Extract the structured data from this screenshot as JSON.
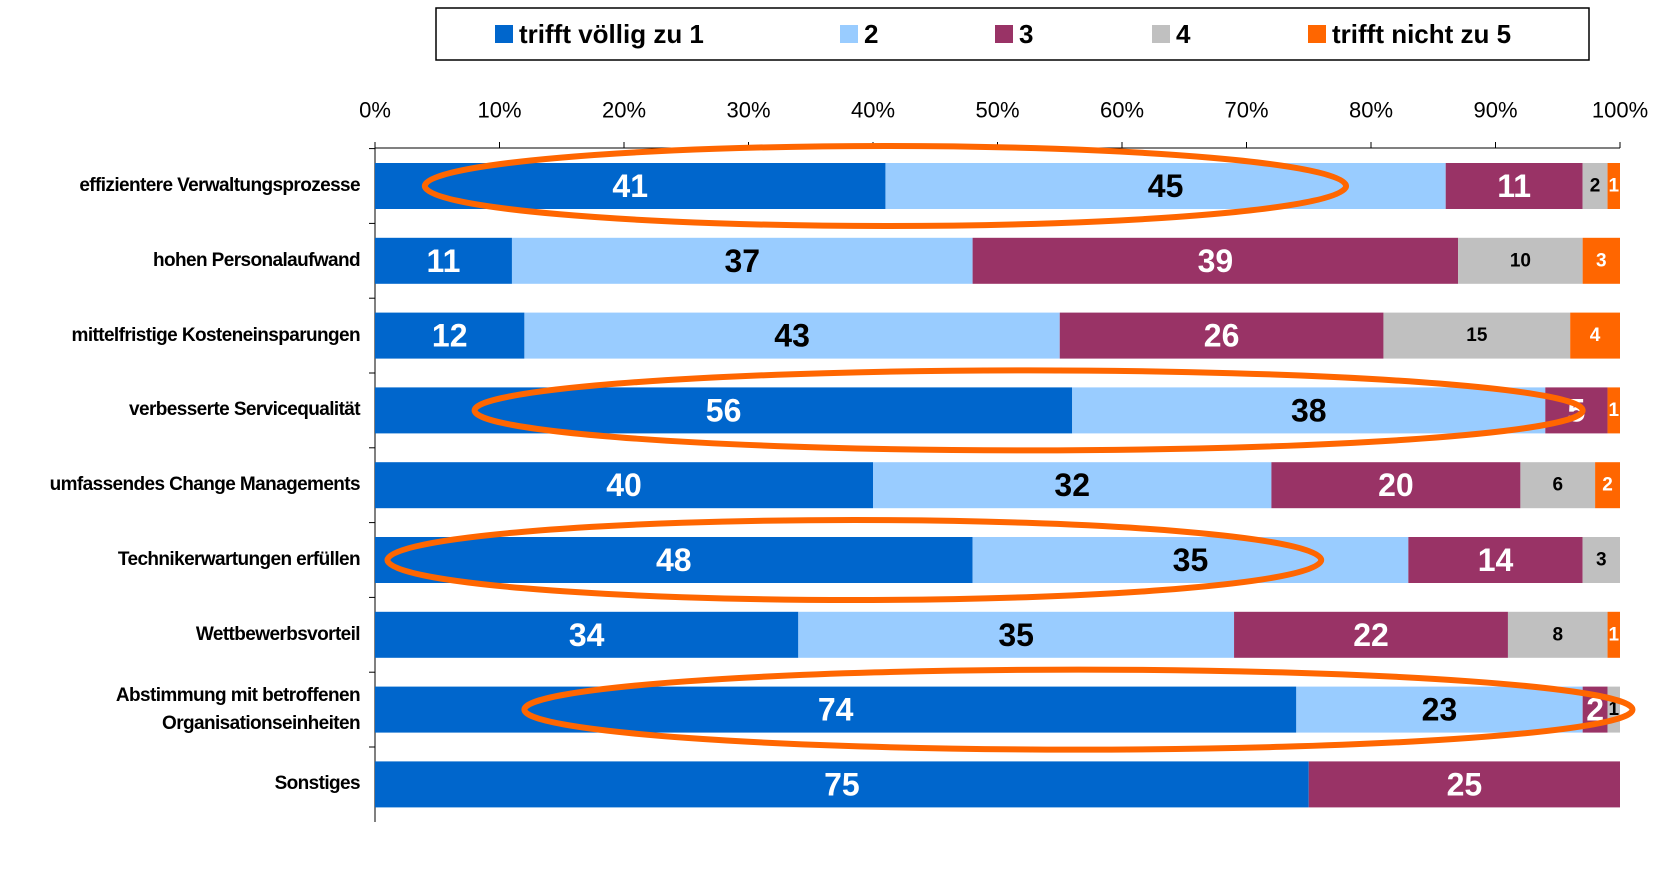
{
  "chart_data": {
    "type": "stacked-bar-horizontal",
    "categories": [
      "effizientere Verwaltungsprozesse",
      "hohen Personalaufwand",
      "mittelfristige Kosteneinsparungen",
      "verbesserte Servicequalität",
      "umfassendes Change Managements",
      "Technikerwartungen erfüllen",
      "Wettbewerbsvorteil",
      "Abstimmung mit betroffenen\nOrganisationseinheiten",
      "Sonstiges"
    ],
    "series": [
      {
        "name": "trifft völlig zu 1",
        "color": "#0066cc",
        "label_color": "#ffffff",
        "values": [
          41,
          11,
          12,
          56,
          40,
          48,
          34,
          74,
          75
        ]
      },
      {
        "name": "2",
        "color": "#99ccff",
        "label_color": "#000000",
        "values": [
          45,
          37,
          43,
          38,
          32,
          35,
          35,
          23,
          null
        ]
      },
      {
        "name": "3",
        "color": "#993366",
        "label_color": "#ffffff",
        "values": [
          11,
          39,
          26,
          5,
          20,
          14,
          22,
          2,
          25
        ]
      },
      {
        "name": "4",
        "color": "#c0c0c0",
        "label_color": "#000000",
        "values": [
          2,
          10,
          15,
          null,
          6,
          3,
          8,
          1,
          null
        ]
      },
      {
        "name": "trifft nicht zu 5",
        "color": "#ff6600",
        "label_color": "#ffffff",
        "values": [
          1,
          3,
          4,
          1,
          2,
          null,
          1,
          null,
          null
        ]
      }
    ],
    "xlim": [
      0,
      100
    ],
    "xticks": [
      {
        "value": 0,
        "label": "0%"
      },
      {
        "value": 10,
        "label": "10%"
      },
      {
        "value": 20,
        "label": "20%"
      },
      {
        "value": 30,
        "label": "30%"
      },
      {
        "value": 40,
        "label": "40%"
      },
      {
        "value": 50,
        "label": "50%"
      },
      {
        "value": 60,
        "label": "60%"
      },
      {
        "value": 70,
        "label": "70%"
      },
      {
        "value": 80,
        "label": "80%"
      },
      {
        "value": 90,
        "label": "90%"
      },
      {
        "value": 100,
        "label": "100%"
      }
    ],
    "legend": "top"
  }
}
